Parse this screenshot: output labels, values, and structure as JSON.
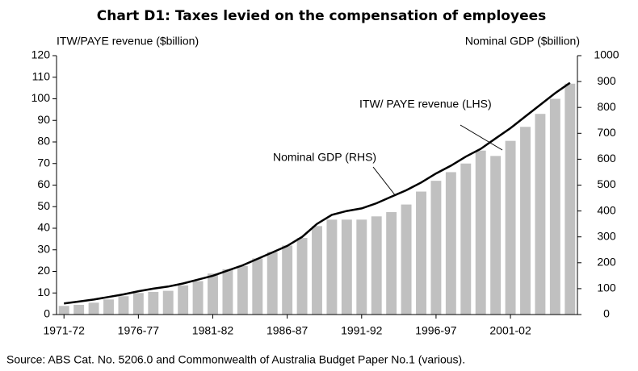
{
  "chart_data": {
    "type": "bar_line",
    "title": "Chart D1:  Taxes levied on the compensation of employees",
    "y_label": "ITW/PAYE revenue ($billion)",
    "y2_label": "Nominal GDP ($billion)",
    "source": "Source:  ABS Cat. No. 5206.0 and Commonwealth of Australia Budget Paper No.1 (various).",
    "categories": [
      "1971-72",
      null,
      null,
      null,
      null,
      "1976-77",
      null,
      null,
      null,
      null,
      "1981-82",
      null,
      null,
      null,
      null,
      "1986-87",
      null,
      null,
      null,
      null,
      "1991-92",
      null,
      null,
      null,
      null,
      "1996-97",
      null,
      null,
      null,
      null,
      "2001-02",
      null,
      null,
      null,
      null
    ],
    "series": [
      {
        "name": "ITW/ PAYE revenue (LHS)",
        "color": "#c0c0c0",
        "values": [
          4,
          4.5,
          5.5,
          7,
          8.5,
          10,
          10.5,
          11,
          13.5,
          15.5,
          19,
          21,
          22.5,
          26,
          29,
          32,
          35.5,
          41,
          44,
          44,
          44,
          45.5,
          47.5,
          51,
          57,
          62,
          66,
          70,
          76,
          73.5,
          80.5,
          87,
          93,
          100,
          107
        ]
      },
      {
        "name": "Nominal GDP (RHS)",
        "color": "#000000",
        "axis": "y2",
        "values": [
          43,
          50,
          58,
          68,
          78,
          90,
          100,
          108,
          120,
          135,
          150,
          170,
          190,
          215,
          240,
          265,
          300,
          350,
          385,
          400,
          410,
          430,
          455,
          480,
          510,
          545,
          575,
          610,
          640,
          680,
          720,
          765,
          810,
          855,
          895
        ]
      }
    ],
    "ylim": [
      0,
      120
    ],
    "yticks": [
      0,
      10,
      20,
      30,
      40,
      50,
      60,
      70,
      80,
      90,
      100,
      110,
      120
    ],
    "y2lim": [
      0,
      1000
    ],
    "y2ticks": [
      0,
      100,
      200,
      300,
      400,
      500,
      600,
      700,
      800,
      900,
      1000
    ]
  }
}
